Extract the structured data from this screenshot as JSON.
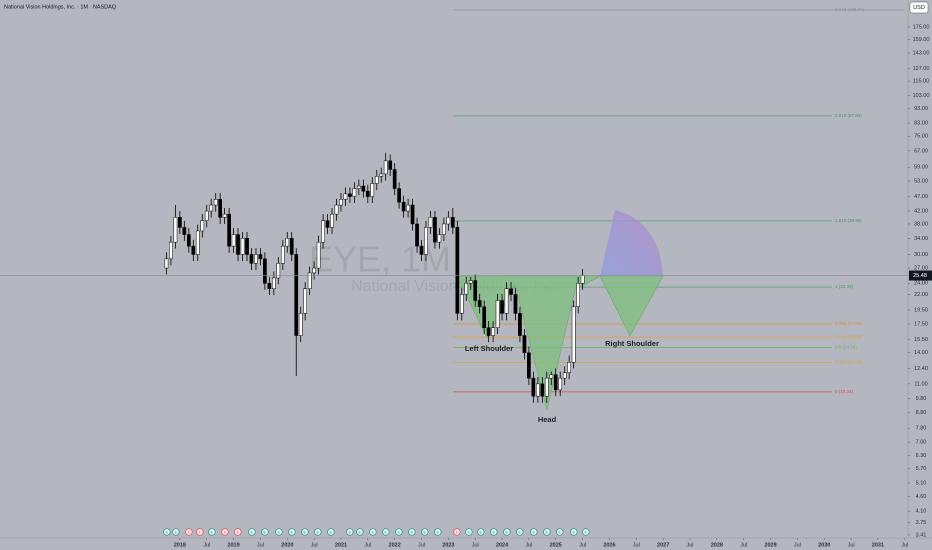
{
  "chart_data": {
    "type": "candlestick",
    "title": "National Vision Holdings, Inc. · 1M · NASDAQ",
    "watermark": "EYE, 1M",
    "watermark_subtitle": "National Vision Holdings, Inc.",
    "currency": "USD",
    "last_price": 25.48,
    "log_scale": true,
    "up_color": "#ffffff",
    "down_color": "#000000",
    "xlim": [
      2014.65,
      2031.56
    ],
    "ylim": [
      3.33,
      215.7
    ],
    "xticks": [
      2018,
      {
        "value": 2018.5,
        "label": "Jul"
      },
      2019,
      {
        "value": 2019.5,
        "label": "Jul"
      },
      2020,
      {
        "value": 2020.5,
        "label": "Jul"
      },
      2021,
      {
        "value": 2021.5,
        "label": "Jul"
      },
      2022,
      {
        "value": 2022.5,
        "label": "Jul"
      },
      2023,
      {
        "value": 2023.5,
        "label": "Jul"
      },
      2024,
      {
        "value": 2024.5,
        "label": "Jul"
      },
      2025,
      {
        "value": 2025.5,
        "label": "Jul"
      },
      2026,
      {
        "value": 2026.5,
        "label": "Jul"
      },
      2027,
      {
        "value": 2027.5,
        "label": "Jul"
      },
      2028,
      {
        "value": 2028.5,
        "label": "Jul"
      },
      2029,
      {
        "value": 2029.5,
        "label": "Jul"
      },
      2030,
      {
        "value": 2030.5,
        "label": "Jul"
      },
      2031,
      {
        "value": 2031.5,
        "label": "Jul"
      }
    ],
    "yticks": [
      3.41,
      3.75,
      {
        "value": 4.1,
        "label": "4.10"
      },
      {
        "value": 4.6,
        "label": "4.60"
      },
      {
        "value": 5.1,
        "label": "5.10"
      },
      {
        "value": 5.7,
        "label": "5.70"
      },
      {
        "value": 6.3,
        "label": "6.30"
      },
      {
        "value": 7,
        "label": "7.00"
      },
      {
        "value": 7.8,
        "label": "7.80"
      },
      {
        "value": 8.8,
        "label": "8.80"
      },
      {
        "value": 9.8,
        "label": "9.80"
      },
      {
        "value": 11,
        "label": "11.00"
      },
      {
        "value": 12.4,
        "label": "12.40"
      },
      {
        "value": 14,
        "label": "14.00"
      },
      {
        "value": 15.5,
        "label": "15.50"
      },
      {
        "value": 17.5,
        "label": "17.50"
      },
      {
        "value": 19.5,
        "label": "19.50"
      },
      {
        "value": 22,
        "label": "22.00"
      },
      {
        "value": 24,
        "label": "24.00"
      },
      {
        "value": 27,
        "label": "27.00"
      },
      {
        "value": 30,
        "label": "30.00"
      },
      {
        "value": 34,
        "label": "34.00"
      },
      {
        "value": 38,
        "label": "38.00"
      },
      {
        "value": 42,
        "label": "42.00"
      },
      {
        "value": 47,
        "label": "47.00"
      },
      {
        "value": 53,
        "label": "53.00"
      },
      {
        "value": 59,
        "label": "59.00"
      },
      {
        "value": 67,
        "label": "67.00"
      },
      {
        "value": 75,
        "label": "75.00"
      },
      {
        "value": 83,
        "label": "83.00"
      },
      {
        "value": 93,
        "label": "93.00"
      },
      {
        "value": 103,
        "label": "103.00"
      },
      {
        "value": 115,
        "label": "115.00"
      },
      {
        "value": 127,
        "label": "127.00"
      },
      {
        "value": 143,
        "label": "143.00"
      },
      {
        "value": 159,
        "label": "159.00"
      },
      {
        "value": 175,
        "label": "175.00"
      }
    ],
    "x": [
      2017.75,
      2017.833,
      2017.917,
      2018,
      2018.083,
      2018.167,
      2018.25,
      2018.333,
      2018.417,
      2018.5,
      2018.583,
      2018.667,
      2018.75,
      2018.833,
      2018.917,
      2019,
      2019.083,
      2019.167,
      2019.25,
      2019.333,
      2019.417,
      2019.5,
      2019.583,
      2019.667,
      2019.75,
      2019.833,
      2019.917,
      2020,
      2020.083,
      2020.167,
      2020.25,
      2020.333,
      2020.417,
      2020.5,
      2020.583,
      2020.667,
      2020.75,
      2020.833,
      2020.917,
      2021,
      2021.083,
      2021.167,
      2021.25,
      2021.333,
      2021.417,
      2021.5,
      2021.583,
      2021.667,
      2021.75,
      2021.833,
      2021.917,
      2022,
      2022.083,
      2022.167,
      2022.25,
      2022.333,
      2022.417,
      2022.5,
      2022.583,
      2022.667,
      2022.75,
      2022.833,
      2022.917,
      2023,
      2023.083,
      2023.167,
      2023.25,
      2023.333,
      2023.417,
      2023.5,
      2023.583,
      2023.667,
      2023.75,
      2023.833,
      2023.917,
      2024,
      2024.083,
      2024.167,
      2024.25,
      2024.333,
      2024.417,
      2024.5,
      2024.583,
      2024.667,
      2024.75,
      2024.833,
      2024.917,
      2025,
      2025.083,
      2025.167,
      2025.25,
      2025.333,
      2025.417,
      2025.5
    ],
    "open": [
      27,
      29,
      33,
      40,
      37,
      35,
      32,
      30,
      36,
      39,
      42,
      44,
      46,
      40,
      41,
      32,
      35,
      30,
      34,
      30,
      28,
      30,
      29,
      24,
      23,
      25,
      28,
      32,
      34,
      30,
      16,
      19,
      23,
      26,
      27,
      33,
      39,
      37,
      41,
      44,
      46,
      48,
      47,
      50,
      51,
      49,
      47,
      52,
      55,
      56,
      62,
      58,
      50,
      45,
      42,
      44,
      38,
      32,
      30,
      37,
      40,
      33,
      35,
      38,
      40,
      37,
      19,
      22,
      24,
      24.5,
      21,
      20,
      17,
      16,
      17,
      21,
      19,
      23,
      22,
      19,
      16,
      14,
      11.5,
      10,
      11,
      10,
      11.5,
      11.8,
      10.5,
      11.5,
      12,
      13,
      20,
      24
    ],
    "high": [
      30.5,
      34.6,
      44,
      42,
      38.9,
      36.8,
      33.6,
      37.8,
      41,
      44.1,
      46.2,
      48.3,
      48.3,
      43,
      43,
      36.8,
      36.8,
      35.7,
      35.7,
      31.5,
      31.5,
      31.5,
      30.5,
      25.2,
      26.3,
      29.4,
      33.6,
      35.7,
      35.7,
      31.5,
      20,
      24.2,
      27.3,
      28.4,
      34.7,
      41,
      41,
      43,
      46.2,
      48.3,
      50.4,
      50.4,
      52.5,
      53.6,
      53.6,
      51.5,
      54.6,
      57.8,
      58.8,
      66,
      65.1,
      60.9,
      52.5,
      47.3,
      46.2,
      46.2,
      39.9,
      33.6,
      38.9,
      42,
      42,
      36.8,
      39.9,
      42,
      43,
      38.9,
      23.1,
      25.2,
      25.2,
      25.7,
      22.1,
      21,
      17.9,
      17.9,
      22.1,
      22.1,
      24.2,
      24.2,
      23.1,
      20,
      16.8,
      14.7,
      12.1,
      11.6,
      11.6,
      12.1,
      12.1,
      12.4,
      12.1,
      12.6,
      13.7,
      21,
      25.2,
      26.8
    ],
    "low": [
      25.7,
      27.6,
      31.4,
      35.2,
      33.3,
      30.4,
      28.5,
      28.5,
      34.2,
      37,
      39.9,
      41.8,
      38,
      38,
      30.4,
      30.4,
      28.5,
      28.5,
      28.5,
      26.6,
      26.6,
      27.6,
      22.8,
      21.9,
      21.9,
      23.8,
      26.6,
      30.4,
      28.5,
      11.7,
      15.2,
      18,
      21.9,
      24.7,
      25.7,
      31.4,
      35.2,
      35.2,
      39,
      41.8,
      43.7,
      44.7,
      44.7,
      47.5,
      46.6,
      44.7,
      44.7,
      49.4,
      52.3,
      53.2,
      55.1,
      47.5,
      42.8,
      39.9,
      39.9,
      36.1,
      30.4,
      28.5,
      28.5,
      35.2,
      31.4,
      31.4,
      33.3,
      36.1,
      35.2,
      18,
      18,
      20.9,
      22.8,
      20,
      19,
      16.2,
      15.2,
      15.2,
      16.2,
      18,
      18,
      20.9,
      18,
      15.2,
      13.3,
      10.9,
      9.5,
      9.5,
      9.5,
      9.5,
      10.9,
      10,
      10,
      10.9,
      11.4,
      12.4,
      19,
      22.8
    ],
    "close": [
      29,
      33,
      40,
      37,
      35,
      32,
      30,
      36,
      39,
      42,
      44,
      46,
      40,
      41,
      32,
      35,
      30,
      34,
      30,
      28,
      30,
      29,
      24,
      23,
      25,
      28,
      32,
      34,
      30,
      16,
      19,
      23,
      26,
      27,
      33,
      39,
      37,
      41,
      44,
      46,
      48,
      47,
      50,
      51,
      49,
      47,
      52,
      55,
      56,
      62,
      58,
      50,
      45,
      42,
      44,
      38,
      32,
      30,
      37,
      40,
      33,
      35,
      38,
      40,
      37,
      19,
      22,
      24,
      24.5,
      21,
      20,
      17,
      16,
      17,
      21,
      19,
      23,
      22,
      19,
      16,
      14,
      11.5,
      10,
      11,
      10,
      11.5,
      11.8,
      10.5,
      11.5,
      12,
      13,
      20,
      24,
      25.48
    ],
    "fib": [
      {
        "value": 199.7,
        "label": "3.618 (199.70)",
        "color": "#8a8d96"
      },
      {
        "value": 87.8,
        "label": "2.618 (87.80)",
        "color": "#3f9a5b"
      },
      {
        "value": 38.9,
        "label": "1.618 (38.90)",
        "color": "#3f9a5b"
      },
      {
        "value": 23.3,
        "label": "1 (23.30)",
        "color": "#3f9a5b"
      },
      {
        "value": 17.5,
        "label": "0.786 (17.50)",
        "color": "#e08a2c"
      },
      {
        "value": 15.8,
        "label": "0.618 (15.80)",
        "color": "#e0a02c"
      },
      {
        "value": 14.6,
        "label": "0.5 (14.60)",
        "color": "#6fae5a"
      },
      {
        "value": 13,
        "label": "0.382 (13.00)",
        "color": "#d5a62c"
      },
      {
        "value": 10.34,
        "label": "0 (10.34)",
        "color": "#d9495a"
      }
    ],
    "annotations": [
      "Left Shoulder",
      "Head",
      "Right Shoulder"
    ],
    "events": [
      {
        "x": 2017.758,
        "label": "E",
        "color": "#089981"
      },
      {
        "x": 2017.926,
        "label": "E",
        "color": "#089981"
      },
      {
        "x": 2018.168,
        "label": "E",
        "color": "#f23645"
      },
      {
        "x": 2018.372,
        "label": "E",
        "color": "#f23645"
      },
      {
        "x": 2018.596,
        "label": "E",
        "color": "#089981"
      },
      {
        "x": 2018.838,
        "label": "E",
        "color": "#f23645"
      },
      {
        "x": 2019.08,
        "label": "E",
        "color": "#f23645"
      },
      {
        "x": 2019.341,
        "label": "E",
        "color": "#089981"
      },
      {
        "x": 2019.583,
        "label": "E",
        "color": "#089981"
      },
      {
        "x": 2019.844,
        "label": "E",
        "color": "#089981"
      },
      {
        "x": 2020.086,
        "label": "E",
        "color": "#089981"
      },
      {
        "x": 2020.328,
        "label": "E",
        "color": "#089981"
      },
      {
        "x": 2020.57,
        "label": "E",
        "color": "#089981"
      },
      {
        "x": 2020.812,
        "label": "E",
        "color": "#089981"
      },
      {
        "x": 2021.166,
        "label": "E",
        "color": "#089981"
      },
      {
        "x": 2021.352,
        "label": "E",
        "color": "#089981"
      },
      {
        "x": 2021.594,
        "label": "E",
        "color": "#089981"
      },
      {
        "x": 2021.836,
        "label": "E",
        "color": "#089981"
      },
      {
        "x": 2022.078,
        "label": "E",
        "color": "#089981"
      },
      {
        "x": 2022.32,
        "label": "E",
        "color": "#089981"
      },
      {
        "x": 2022.562,
        "label": "E",
        "color": "#089981"
      },
      {
        "x": 2022.804,
        "label": "E",
        "color": "#089981"
      },
      {
        "x": 2023.158,
        "label": "E",
        "color": "#f23645"
      },
      {
        "x": 2023.382,
        "label": "E",
        "color": "#089981"
      },
      {
        "x": 2023.605,
        "label": "E",
        "color": "#089981"
      },
      {
        "x": 2023.847,
        "label": "E",
        "color": "#089981"
      },
      {
        "x": 2024.089,
        "label": "E",
        "color": "#089981"
      },
      {
        "x": 2024.331,
        "label": "E",
        "color": "#089981"
      },
      {
        "x": 2024.592,
        "label": "E",
        "color": "#089981"
      },
      {
        "x": 2024.834,
        "label": "E",
        "color": "#089981"
      },
      {
        "x": 2025.076,
        "label": "E",
        "color": "#089981"
      },
      {
        "x": 2025.337,
        "label": "E",
        "color": "#089981"
      },
      {
        "x": 2025.561,
        "label": "E",
        "color": "#089981"
      }
    ]
  }
}
